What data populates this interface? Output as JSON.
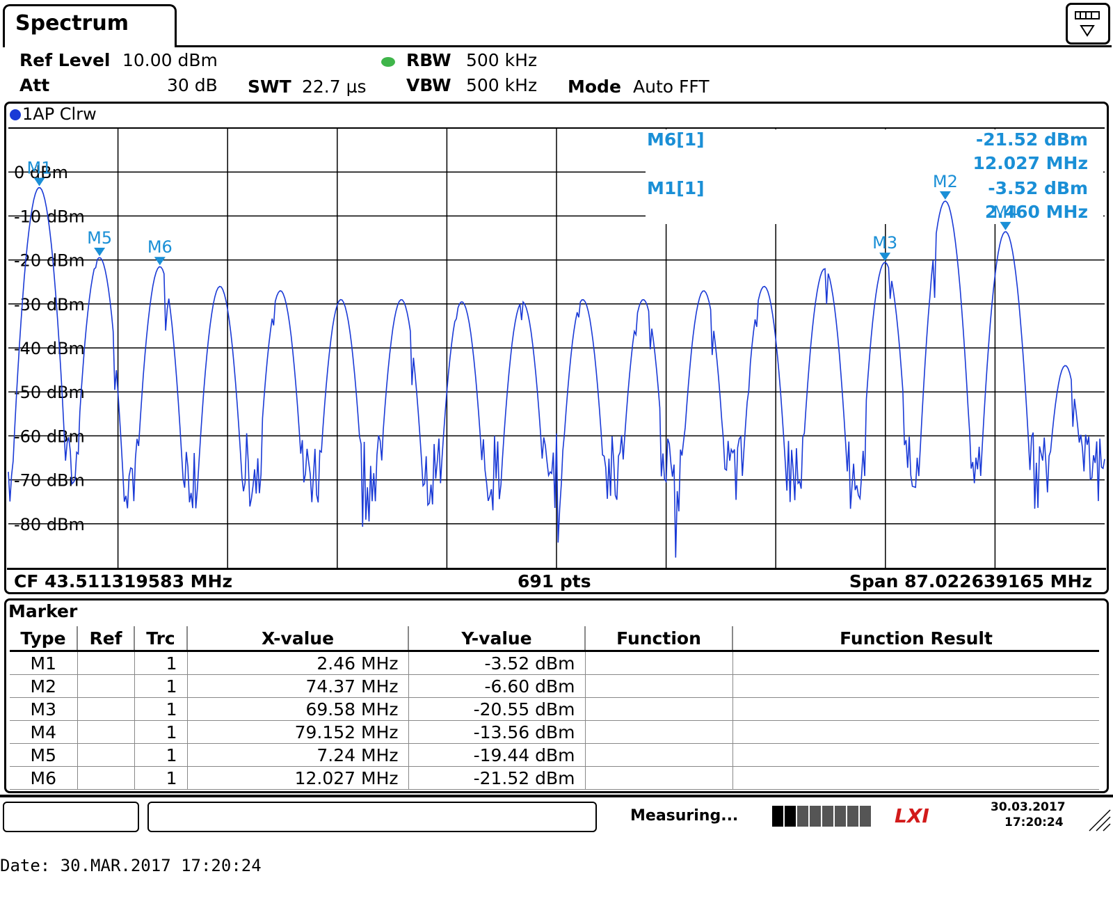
{
  "window": {
    "tab_title": "Spectrum"
  },
  "header": {
    "ref_level_label": "Ref Level",
    "ref_level_value": "10.00 dBm",
    "att_label": "Att",
    "att_value": "30 dB",
    "swt_label": "SWT",
    "swt_value": "22.7 µs",
    "rbw_label": "RBW",
    "rbw_value": "500 kHz",
    "vbw_label": "VBW",
    "vbw_value": "500 kHz",
    "mode_label": "Mode",
    "mode_value": "Auto FFT"
  },
  "trace": {
    "label": "1AP Clrw",
    "color": "#1a3ad6"
  },
  "marker_readout": {
    "m6_label": "M6[1]",
    "m6_level": "-21.52 dBm",
    "m6_freq": "12.027 MHz",
    "m1_label": "M1[1]",
    "m1_level": "-3.52 dBm",
    "m1_freq": "2.460 MHz",
    "color": "#1a8fd6"
  },
  "plot_footer": {
    "cf": "CF 43.511319583 MHz",
    "points": "691 pts",
    "span": "Span 87.022639165 MHz"
  },
  "chart_data": {
    "type": "line",
    "x_unit": "MHz",
    "y_unit": "dBm",
    "xlim": [
      0,
      87.022639165
    ],
    "ylim": [
      -90,
      10
    ],
    "yticks": [
      "0 dBm",
      "-10 dBm",
      "-20 dBm",
      "-30 dBm",
      "-40 dBm",
      "-50 dBm",
      "-60 dBm",
      "-70 dBm",
      "-80 dBm"
    ],
    "ytick_values": [
      0,
      -10,
      -20,
      -30,
      -40,
      -50,
      -60,
      -70,
      -80
    ],
    "grid": true,
    "peaks": [
      {
        "x": 2.46,
        "y": -3.52
      },
      {
        "x": 7.24,
        "y": -19.44
      },
      {
        "x": 12.027,
        "y": -21.52
      },
      {
        "x": 16.8,
        "y": -26
      },
      {
        "x": 21.6,
        "y": -27
      },
      {
        "x": 26.4,
        "y": -29
      },
      {
        "x": 31.2,
        "y": -29
      },
      {
        "x": 36.0,
        "y": -29.5
      },
      {
        "x": 40.8,
        "y": -29.5
      },
      {
        "x": 45.6,
        "y": -29
      },
      {
        "x": 50.4,
        "y": -29
      },
      {
        "x": 55.2,
        "y": -27
      },
      {
        "x": 60.0,
        "y": -26
      },
      {
        "x": 64.8,
        "y": -22
      },
      {
        "x": 69.58,
        "y": -20.55
      },
      {
        "x": 74.37,
        "y": -6.6
      },
      {
        "x": 79.152,
        "y": -13.56
      },
      {
        "x": 83.9,
        "y": -44
      }
    ],
    "markers": [
      {
        "name": "M1",
        "x": 2.46,
        "y": -3.52
      },
      {
        "name": "M2",
        "x": 74.37,
        "y": -6.6
      },
      {
        "name": "M3",
        "x": 69.58,
        "y": -20.55
      },
      {
        "name": "M4",
        "x": 79.152,
        "y": -13.56
      },
      {
        "name": "M5",
        "x": 7.24,
        "y": -19.44
      },
      {
        "name": "M6",
        "x": 12.027,
        "y": -21.52
      }
    ]
  },
  "marker_table": {
    "title": "Marker",
    "headers": [
      "Type",
      "Ref",
      "Trc",
      "X-value",
      "Y-value",
      "Function",
      "Function Result"
    ],
    "rows": [
      {
        "type": "M1",
        "ref": "",
        "trc": "1",
        "x": "2.46 MHz",
        "y": "-3.52 dBm",
        "func": "",
        "result": ""
      },
      {
        "type": "M2",
        "ref": "",
        "trc": "1",
        "x": "74.37 MHz",
        "y": "-6.60 dBm",
        "func": "",
        "result": ""
      },
      {
        "type": "M3",
        "ref": "",
        "trc": "1",
        "x": "69.58 MHz",
        "y": "-20.55 dBm",
        "func": "",
        "result": ""
      },
      {
        "type": "M4",
        "ref": "",
        "trc": "1",
        "x": "79.152 MHz",
        "y": "-13.56 dBm",
        "func": "",
        "result": ""
      },
      {
        "type": "M5",
        "ref": "",
        "trc": "1",
        "x": "7.24 MHz",
        "y": "-19.44 dBm",
        "func": "",
        "result": ""
      },
      {
        "type": "M6",
        "ref": "",
        "trc": "1",
        "x": "12.027 MHz",
        "y": "-21.52 dBm",
        "func": "",
        "result": ""
      }
    ]
  },
  "status_bar": {
    "status": "Measuring...",
    "date": "30.03.2017",
    "time": "17:20:24",
    "logo": "LXI"
  },
  "date_line": "Date: 30.MAR.2017  17:20:24"
}
